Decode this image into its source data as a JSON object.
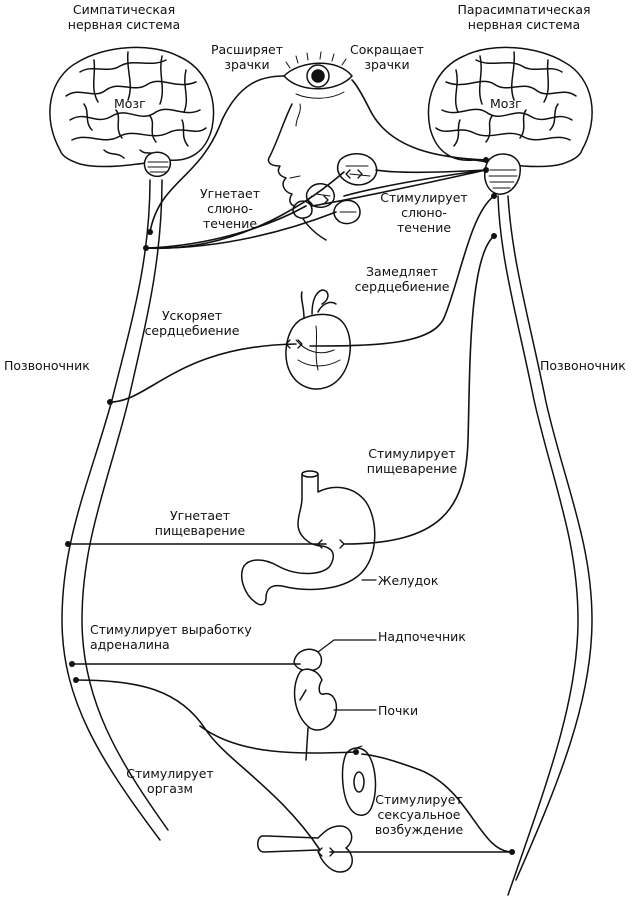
{
  "title_left": "Симпатическая\nнервная система",
  "title_right": "Парасимпатическая\nнервная система",
  "brain_left": "Мозг",
  "brain_right": "Мозг",
  "spine_left": "Позвоночник",
  "spine_right": "Позвоночник",
  "effects": {
    "dilates_pupils": "Расширяет\nзрачки",
    "constricts_pupils": "Сокращает\nзрачки",
    "inhibits_salivation": "Угнетает\nслюно-\nтечение",
    "stimulates_salivation": "Стимулирует\nслюно-\nтечение",
    "slows_heartbeat": "Замедляет\nсердцебиение",
    "accelerates_heartbeat": "Ускоряет\nсердцебиение",
    "stimulates_digestion": "Стимулирует\nпищеварение",
    "inhibits_digestion": "Угнетает\nпищеварение",
    "stimulates_adrenaline": "Стимулирует выработку\nадреналина",
    "stimulates_orgasm": "Стимулирует\nоргазм",
    "stimulates_arousal": "Стимулирует\nсексуальное\nвозбуждение"
  },
  "organs": {
    "stomach": "Желудок",
    "adrenal": "Надпочечник",
    "kidneys": "Почки"
  }
}
